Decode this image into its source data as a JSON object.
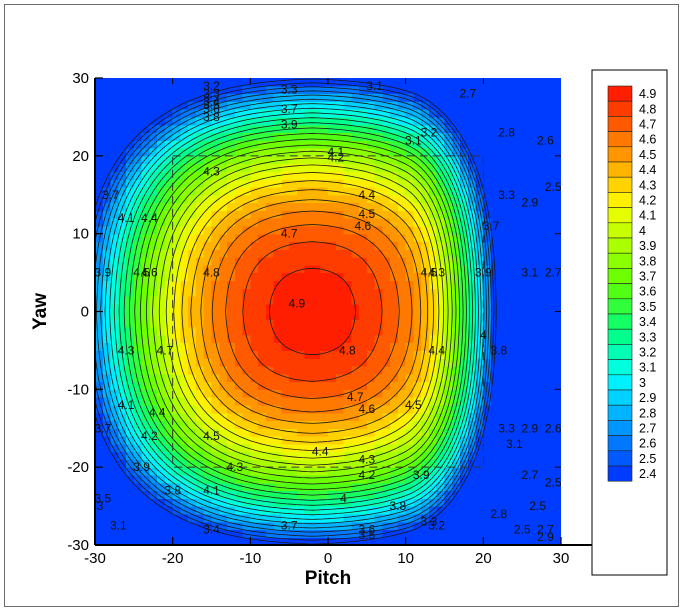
{
  "chart_data": {
    "type": "heatmap",
    "subtype": "filled-contour",
    "title": "",
    "xlabel": "Pitch",
    "ylabel": "Yaw",
    "xlim": [
      -30,
      30
    ],
    "ylim": [
      -30,
      30
    ],
    "xticks": [
      "-30",
      "-20",
      "-10",
      "0",
      "10",
      "20",
      "30"
    ],
    "yticks": [
      "30",
      "20",
      "10",
      "0",
      "-10",
      "-20",
      "-30"
    ],
    "grid": false,
    "legend_position": "right",
    "levels": [
      4.9,
      4.8,
      4.7,
      4.6,
      4.5,
      4.4,
      4.3,
      4.2,
      4.1,
      4,
      3.9,
      3.8,
      3.7,
      3.6,
      3.5,
      3.4,
      3.3,
      3.2,
      3.1,
      3,
      2.9,
      2.8,
      2.7,
      2.6,
      2.5,
      2.4
    ],
    "level_labels": [
      "4.9",
      "4.8",
      "4.7",
      "4.6",
      "4.5",
      "4.4",
      "4.3",
      "4.2",
      "4.1",
      "4",
      "3.9",
      "3.8",
      "3.7",
      "3.6",
      "3.5",
      "3.4",
      "3.3",
      "3.2",
      "3.1",
      "3",
      "2.9",
      "2.8",
      "2.7",
      "2.6",
      "2.5",
      "2.4"
    ],
    "colors": [
      "#ff1e00",
      "#ff3c00",
      "#ff5a00",
      "#ff7800",
      "#ff9600",
      "#ffb400",
      "#ffd200",
      "#fff000",
      "#e6ff00",
      "#c8ff00",
      "#aaff00",
      "#8cff00",
      "#6eff00",
      "#50ff14",
      "#32ff3c",
      "#14ff64",
      "#00ff8c",
      "#00ffb4",
      "#00ffdc",
      "#00f0ff",
      "#00d2ff",
      "#00b4ff",
      "#0096ff",
      "#0078ff",
      "#005aff",
      "#003cff"
    ],
    "peak_value": 4.9,
    "peak_location": {
      "pitch": -8,
      "yaw": 0
    },
    "min_value": 2.4,
    "min_location": {
      "pitch": 28,
      "yaw": -28
    },
    "dashed_box": {
      "pitch": [
        -20,
        20
      ],
      "yaw": [
        -20,
        20
      ]
    },
    "contour_labels": [
      {
        "text": "3.2",
        "x": -15,
        "y": 29
      },
      {
        "text": "3.3",
        "x": -15,
        "y": 28
      },
      {
        "text": "3.4",
        "x": -15,
        "y": 27
      },
      {
        "text": "3.5",
        "x": -15,
        "y": 26.5
      },
      {
        "text": "3.6",
        "x": -15,
        "y": 26
      },
      {
        "text": "3.8",
        "x": -15,
        "y": 25
      },
      {
        "text": "3.3",
        "x": -5,
        "y": 28.5
      },
      {
        "text": "3.7",
        "x": -5,
        "y": 26
      },
      {
        "text": "3.9",
        "x": -5,
        "y": 24
      },
      {
        "text": "3.1",
        "x": 6,
        "y": 29
      },
      {
        "text": "2.7",
        "x": 18,
        "y": 28
      },
      {
        "text": "2.8",
        "x": 23,
        "y": 23
      },
      {
        "text": "2.6",
        "x": 28,
        "y": 22
      },
      {
        "text": "3.2",
        "x": 13,
        "y": 23
      },
      {
        "text": "3.1",
        "x": 11,
        "y": 22
      },
      {
        "text": "4.1",
        "x": 1,
        "y": 20.5
      },
      {
        "text": "4.2",
        "x": 1,
        "y": 19.8
      },
      {
        "text": "4.3",
        "x": -15,
        "y": 18
      },
      {
        "text": "4.4",
        "x": 5,
        "y": 15
      },
      {
        "text": "4.5",
        "x": 5,
        "y": 12.5
      },
      {
        "text": "4.6",
        "x": 4.5,
        "y": 11
      },
      {
        "text": "4.7",
        "x": -5,
        "y": 10
      },
      {
        "text": "4.8",
        "x": -15,
        "y": 5
      },
      {
        "text": "4.9",
        "x": -4,
        "y": 1
      },
      {
        "text": "4.8",
        "x": 2.5,
        "y": -5
      },
      {
        "text": "4.7",
        "x": 3.5,
        "y": -11
      },
      {
        "text": "4.6",
        "x": 5,
        "y": -12.5
      },
      {
        "text": "4.5",
        "x": 11,
        "y": -12
      },
      {
        "text": "4.5",
        "x": -15,
        "y": -16
      },
      {
        "text": "4.4",
        "x": -1,
        "y": -18
      },
      {
        "text": "4.3",
        "x": 5,
        "y": -19
      },
      {
        "text": "4.3",
        "x": -12,
        "y": -20
      },
      {
        "text": "4.2",
        "x": 5,
        "y": -21
      },
      {
        "text": "4.1",
        "x": -15,
        "y": -23
      },
      {
        "text": "4",
        "x": 2,
        "y": -24
      },
      {
        "text": "3.9",
        "x": 12,
        "y": -21
      },
      {
        "text": "3.8",
        "x": 9,
        "y": -25
      },
      {
        "text": "3.7",
        "x": -5,
        "y": -27.5
      },
      {
        "text": "3.6",
        "x": 5,
        "y": -28
      },
      {
        "text": "3.5",
        "x": 5,
        "y": -28.7
      },
      {
        "text": "3.4",
        "x": -15,
        "y": -28
      },
      {
        "text": "3.3",
        "x": 13,
        "y": -27
      },
      {
        "text": "3.2",
        "x": 14,
        "y": -27.5
      },
      {
        "text": "3.1",
        "x": -27,
        "y": -27.5
      },
      {
        "text": "3.7",
        "x": -29,
        "y": -15
      },
      {
        "text": "3.9",
        "x": -24,
        "y": -20
      },
      {
        "text": "3.8",
        "x": -20,
        "y": -23
      },
      {
        "text": "4.1",
        "x": -26,
        "y": -12
      },
      {
        "text": "4.2",
        "x": -23,
        "y": -16
      },
      {
        "text": "4.4",
        "x": -22,
        "y": -13
      },
      {
        "text": "4.3",
        "x": -26,
        "y": -5
      },
      {
        "text": "4.7",
        "x": -21,
        "y": -5
      },
      {
        "text": "4.5",
        "x": -24,
        "y": 5
      },
      {
        "text": "4.6",
        "x": -23,
        "y": 5
      },
      {
        "text": "4.4",
        "x": -23,
        "y": 12
      },
      {
        "text": "4.1",
        "x": -26,
        "y": 12
      },
      {
        "text": "3.7",
        "x": -28,
        "y": 15
      },
      {
        "text": "3.9",
        "x": -29,
        "y": 5
      },
      {
        "text": "4.4",
        "x": 14,
        "y": -5
      },
      {
        "text": "4.3",
        "x": 14,
        "y": 5
      },
      {
        "text": "4.5",
        "x": 13,
        "y": 5
      },
      {
        "text": "3.9",
        "x": 20,
        "y": 5
      },
      {
        "text": "4",
        "x": 20,
        "y": -3
      },
      {
        "text": "3.7",
        "x": 21,
        "y": 11
      },
      {
        "text": "3.3",
        "x": 23,
        "y": 15
      },
      {
        "text": "2.9",
        "x": 26,
        "y": 14
      },
      {
        "text": "2.5",
        "x": 29,
        "y": 16
      },
      {
        "text": "3.1",
        "x": 26,
        "y": 5
      },
      {
        "text": "2.7",
        "x": 29,
        "y": 5
      },
      {
        "text": "3.8",
        "x": 22,
        "y": -5
      },
      {
        "text": "3.3",
        "x": 23,
        "y": -15
      },
      {
        "text": "3.1",
        "x": 24,
        "y": -17
      },
      {
        "text": "2.9",
        "x": 26,
        "y": -15
      },
      {
        "text": "2.6",
        "x": 29,
        "y": -15
      },
      {
        "text": "2.7",
        "x": 26,
        "y": -21
      },
      {
        "text": "2.5",
        "x": 27,
        "y": -25
      },
      {
        "text": "2.5",
        "x": 25,
        "y": -28
      },
      {
        "text": "2.8",
        "x": 22,
        "y": -26
      },
      {
        "text": "2.5",
        "x": 29,
        "y": -22
      },
      {
        "text": "2.7",
        "x": 28,
        "y": -28
      },
      {
        "text": "2.9",
        "x": 28,
        "y": -29
      },
      {
        "text": "3.5",
        "x": -29,
        "y": -24
      },
      {
        "text": "3.3",
        "x": -30,
        "y": -25
      }
    ]
  }
}
